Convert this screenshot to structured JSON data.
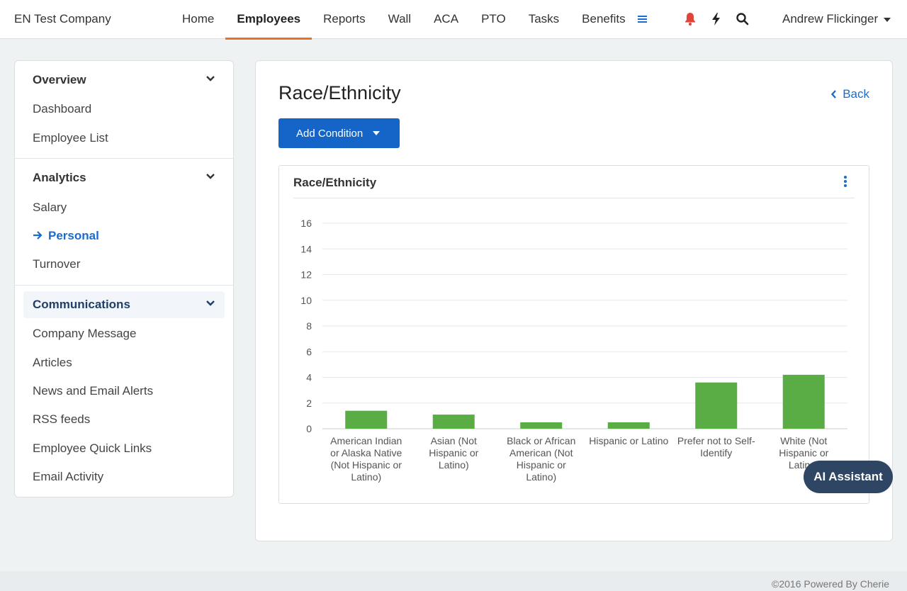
{
  "header": {
    "brand": "EN Test Company",
    "nav": [
      "Home",
      "Employees",
      "Reports",
      "Wall",
      "ACA",
      "PTO",
      "Tasks",
      "Benefits"
    ],
    "active_nav": "Employees",
    "user_name": "Andrew Flickinger",
    "icons": [
      "menu-icon",
      "bell-icon",
      "lightning-icon",
      "search-icon"
    ],
    "colors": {
      "accent": "#e8712a",
      "bell": "#e0453a",
      "link": "#1a6dcc"
    }
  },
  "sidebar": {
    "sections": [
      {
        "title": "Overview",
        "items": [
          "Dashboard",
          "Employee List"
        ]
      },
      {
        "title": "Analytics",
        "items": [
          "Salary",
          "Personal",
          "Turnover"
        ]
      },
      {
        "title": "Communications",
        "items": [
          "Company Message",
          "Articles",
          "News and Email Alerts",
          "RSS feeds",
          "Employee Quick Links",
          "Email Activity"
        ]
      }
    ],
    "active_item": "Personal"
  },
  "main": {
    "title": "Race/Ethnicity",
    "back_label": "Back",
    "add_condition_label": "Add Condition",
    "chart_card_title": "Race/Ethnicity"
  },
  "chart_data": {
    "type": "bar",
    "categories": [
      "American Indian or Alaska Native (Not Hispanic or Latino)",
      "Asian (Not Hispanic or Latino)",
      "Black or African American (Not Hispanic or Latino)",
      "Hispanic or Latino",
      "Prefer not to Self-Identify",
      "White (Not Hispanic or Latino)"
    ],
    "category_lines": [
      [
        "American Indian",
        "or Alaska Native",
        "(Not Hispanic or",
        "Latino)"
      ],
      [
        "Asian (Not",
        "Hispanic or",
        "Latino)"
      ],
      [
        "Black or African",
        "American (Not",
        "Hispanic or",
        "Latino)"
      ],
      [
        "Hispanic or Latino"
      ],
      [
        "Prefer not to Self-",
        "Identify"
      ],
      [
        "White (Not",
        "Hispanic or",
        "Latino)"
      ]
    ],
    "values": [
      1.4,
      1.1,
      0.5,
      0.5,
      3.6,
      4.2
    ],
    "ylim": [
      0,
      16
    ],
    "yticks": [
      0,
      2,
      4,
      6,
      8,
      10,
      12,
      14,
      16
    ],
    "grid": true,
    "bar_color": "#5aac44"
  },
  "ai_assistant_label": "AI Assistant",
  "footer": "©2016 Powered By Cherie"
}
